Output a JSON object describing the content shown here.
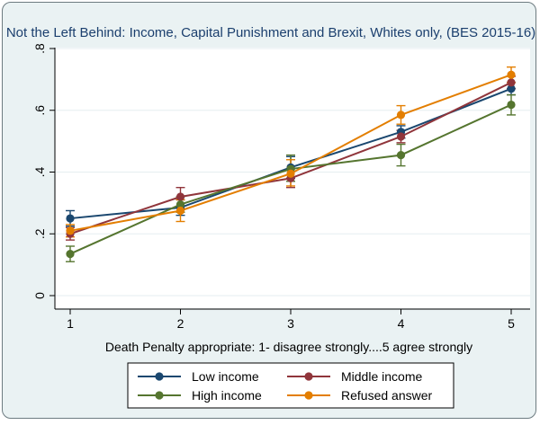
{
  "chart_data": {
    "type": "line",
    "title": "Not the Left Behind: Income, Capital Punishment and Brexit, Whites only, (BES 2015-16)",
    "xlabel": "Death Penalty appropriate: 1- disagree strongly....5 agree strongly",
    "ylabel": "",
    "x": [
      1,
      2,
      3,
      4,
      5
    ],
    "x_tick_labels": [
      "1",
      "2",
      "3",
      "4",
      "5"
    ],
    "xlim": [
      1,
      5
    ],
    "ylim": [
      0,
      0.8
    ],
    "y_ticks": [
      0,
      0.2,
      0.4,
      0.6,
      0.8
    ],
    "y_tick_labels": [
      "0",
      ".2",
      ".4",
      ".6",
      ".8"
    ],
    "grid": true,
    "legend_position": "bottom",
    "series": [
      {
        "name": "Low income",
        "color": "#1a476f",
        "values": [
          0.25,
          0.285,
          0.415,
          0.53,
          0.67
        ],
        "ci_low": [
          0.225,
          0.26,
          0.38,
          0.51,
          0.65
        ],
        "ci_high": [
          0.275,
          0.31,
          0.45,
          0.55,
          0.69
        ]
      },
      {
        "name": "Middle income",
        "color": "#90353b",
        "values": [
          0.2,
          0.32,
          0.38,
          0.515,
          0.69
        ],
        "ci_low": [
          0.18,
          0.29,
          0.35,
          0.495,
          0.67
        ],
        "ci_high": [
          0.22,
          0.35,
          0.41,
          0.535,
          0.71
        ]
      },
      {
        "name": "High income",
        "color": "#55752f",
        "values": [
          0.135,
          0.295,
          0.41,
          0.455,
          0.618
        ],
        "ci_low": [
          0.11,
          0.27,
          0.37,
          0.42,
          0.585
        ],
        "ci_high": [
          0.16,
          0.32,
          0.455,
          0.49,
          0.65
        ]
      },
      {
        "name": "Refused answer",
        "color": "#e37e00",
        "values": [
          0.21,
          0.275,
          0.395,
          0.585,
          0.715
        ],
        "ci_low": [
          0.19,
          0.24,
          0.355,
          0.555,
          0.69
        ],
        "ci_high": [
          0.23,
          0.31,
          0.44,
          0.615,
          0.74
        ]
      }
    ]
  }
}
